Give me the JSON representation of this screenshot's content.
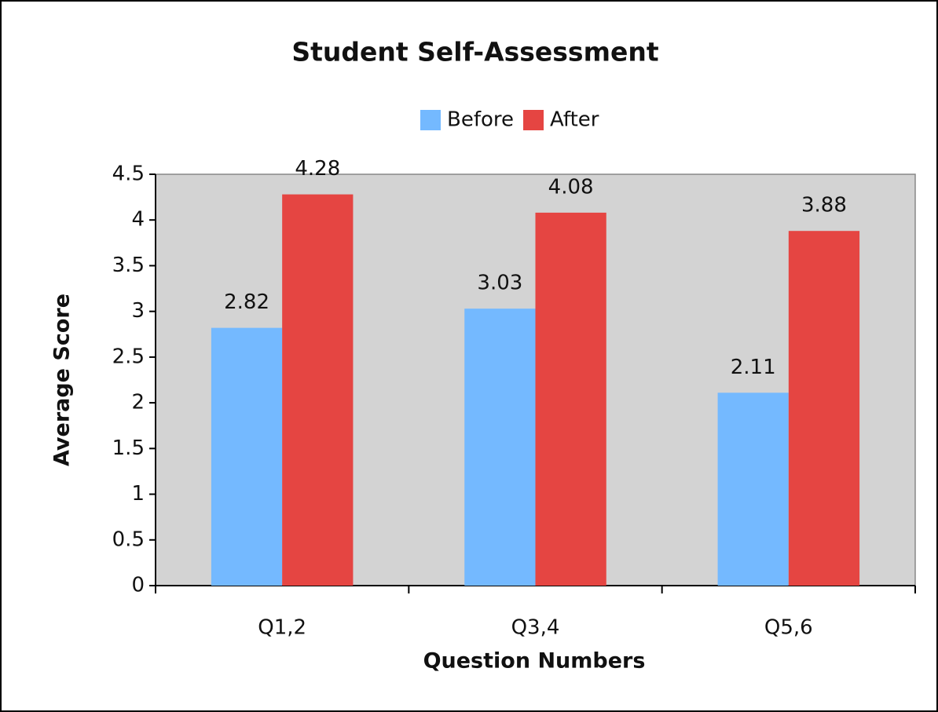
{
  "chart_data": {
    "type": "bar",
    "title": "Student Self-Assessment",
    "x_label": "Question Numbers",
    "y_label": "Average Score",
    "categories": [
      "Q1,2",
      "Q3,4",
      "Q5,6"
    ],
    "series": [
      {
        "name": "Before",
        "color": "#74b9ff",
        "values": [
          2.82,
          3.03,
          2.11
        ]
      },
      {
        "name": "After",
        "color": "#e54542",
        "values": [
          4.28,
          4.08,
          3.88
        ]
      }
    ],
    "ylim": [
      0,
      4.5
    ],
    "yticks": [
      0,
      0.5,
      1,
      1.5,
      2,
      2.5,
      3,
      3.5,
      4,
      4.5
    ],
    "legend": "top",
    "plot_background": "#d3d3d3"
  }
}
